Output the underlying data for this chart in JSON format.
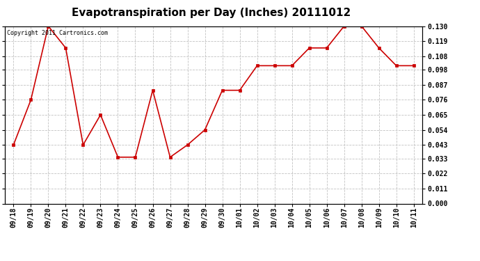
{
  "title": "Evapotranspiration per Day (Inches) 20111012",
  "copyright": "Copyright 2011 Cartronics.com",
  "x_labels": [
    "09/18",
    "09/19",
    "09/20",
    "09/21",
    "09/22",
    "09/23",
    "09/24",
    "09/25",
    "09/26",
    "09/27",
    "09/28",
    "09/29",
    "09/30",
    "10/01",
    "10/02",
    "10/03",
    "10/04",
    "10/05",
    "10/06",
    "10/07",
    "10/08",
    "10/09",
    "10/10",
    "10/11"
  ],
  "y_values": [
    0.043,
    0.076,
    0.13,
    0.114,
    0.043,
    0.065,
    0.034,
    0.034,
    0.083,
    0.034,
    0.043,
    0.054,
    0.083,
    0.083,
    0.101,
    0.101,
    0.101,
    0.114,
    0.114,
    0.13,
    0.13,
    0.114,
    0.101,
    0.101
  ],
  "ylim": [
    0.0,
    0.13
  ],
  "yticks": [
    0.0,
    0.011,
    0.022,
    0.033,
    0.043,
    0.054,
    0.065,
    0.076,
    0.087,
    0.098,
    0.108,
    0.119,
    0.13
  ],
  "line_color": "#cc0000",
  "marker_color": "#cc0000",
  "background_color": "#ffffff",
  "grid_color": "#bbbbbb",
  "title_fontsize": 11,
  "copyright_fontsize": 6,
  "tick_fontsize": 7,
  "ytick_fontsize": 7
}
